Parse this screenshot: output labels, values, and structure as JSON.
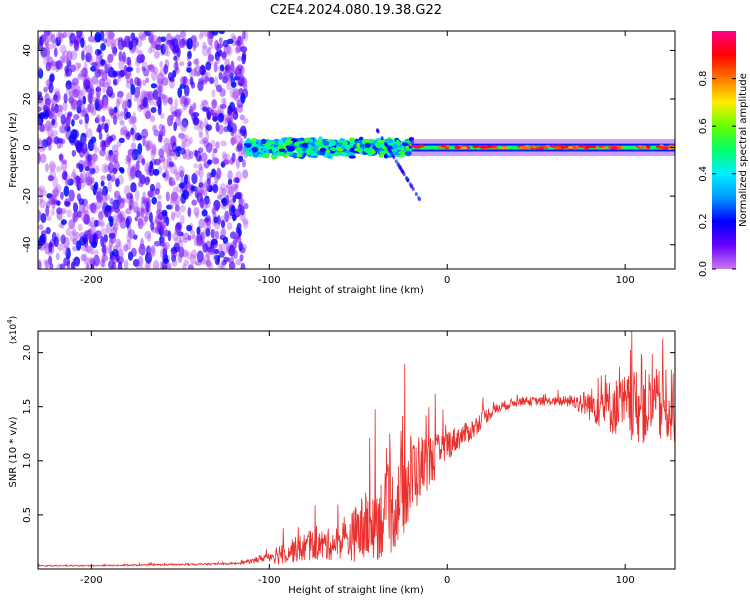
{
  "title": "C2E4.2024.080.19.38.G22",
  "colors": {
    "snr_line": "#e8312e",
    "colorbar_stops": [
      "#cc77ee",
      "#6600ff",
      "#0000ff",
      "#0099ff",
      "#00eeff",
      "#00ff66",
      "#66ff00",
      "#ffee00",
      "#ff7700",
      "#ff0000",
      "#ff0088"
    ]
  },
  "chart_data": [
    {
      "type": "heatmap",
      "xlabel": "Height of straight line (km)",
      "ylabel": "Frequency (Hz)",
      "xlim": [
        -230,
        128
      ],
      "ylim": [
        -50,
        48
      ],
      "xticks": [
        -200,
        -100,
        0,
        100
      ],
      "xtick_labels": [
        "-200",
        "-100",
        "0",
        "100"
      ],
      "yticks": [
        -40,
        -20,
        0,
        20,
        40
      ],
      "ytick_labels": [
        "-40",
        "-20",
        "0",
        "20",
        "40"
      ],
      "colorbar": {
        "label": "Normalized spectral amplitude",
        "range": [
          0,
          1
        ],
        "ticks": [
          0.0,
          0.2,
          0.4,
          0.6,
          0.8
        ],
        "tick_labels": [
          "0.0",
          "0.2",
          "0.4",
          "0.6",
          "0.8"
        ]
      },
      "regions": [
        {
          "x_range": [
            -230,
            -113
          ],
          "freq_range": [
            -50,
            48
          ],
          "amplitude": "low, noise (0.05-0.25)"
        },
        {
          "x_range": [
            -113,
            -20
          ],
          "freq_center_hz": 0,
          "freq_spread_hz": 6,
          "amplitude": "0.2-0.6"
        },
        {
          "x_range": [
            -20,
            128
          ],
          "freq_center_hz": 0,
          "freq_spread_hz": 2,
          "amplitude": "0.4-1.0"
        }
      ]
    },
    {
      "type": "line",
      "xlabel": "Height of straight line (km)",
      "ylabel": "SNR (10 * v/v)",
      "y_multiplier": "(x10",
      "y_multiplier_exp": "4",
      "y_multiplier_close": ")",
      "xlim": [
        -230,
        128
      ],
      "ylim": [
        0.0,
        2.2
      ],
      "xticks": [
        -200,
        -100,
        0,
        100
      ],
      "xtick_labels": [
        "-200",
        "-100",
        "0",
        "100"
      ],
      "yticks": [
        0.5,
        1.0,
        1.5,
        2.0
      ],
      "ytick_labels": [
        "0.5",
        "1.0",
        "1.5",
        "2.0"
      ],
      "series": [
        {
          "x": [
            -230,
            -200,
            -150,
            -120,
            -110,
            -100,
            -95,
            -90,
            -85,
            -80,
            -75,
            -70,
            -65,
            -60,
            -55,
            -50,
            -45,
            -40,
            -35,
            -30,
            -25,
            -20,
            -15,
            -10,
            -5,
            0,
            5,
            10,
            15,
            20,
            25,
            30,
            40,
            50,
            60,
            70,
            80,
            90,
            100,
            110,
            120,
            128
          ],
          "values": [
            0.03,
            0.03,
            0.04,
            0.05,
            0.07,
            0.12,
            0.14,
            0.17,
            0.18,
            0.2,
            0.22,
            0.22,
            0.23,
            0.25,
            0.28,
            0.35,
            0.38,
            0.45,
            0.5,
            0.55,
            0.7,
            0.85,
            0.95,
            1.0,
            1.05,
            1.15,
            1.2,
            1.25,
            1.3,
            1.4,
            1.45,
            1.5,
            1.55,
            1.55,
            1.55,
            1.55,
            1.52,
            1.5,
            1.5,
            1.5,
            1.5,
            1.5
          ],
          "noise": [
            0.005,
            0.005,
            0.008,
            0.01,
            0.02,
            0.05,
            0.1,
            0.12,
            0.12,
            0.14,
            0.14,
            0.15,
            0.15,
            0.16,
            0.2,
            0.3,
            0.35,
            0.38,
            0.4,
            0.4,
            0.4,
            0.45,
            0.3,
            0.25,
            0.2,
            0.15,
            0.12,
            0.1,
            0.1,
            0.08,
            0.06,
            0.05,
            0.04,
            0.04,
            0.04,
            0.06,
            0.15,
            0.25,
            0.3,
            0.35,
            0.35,
            0.35
          ]
        }
      ]
    }
  ]
}
